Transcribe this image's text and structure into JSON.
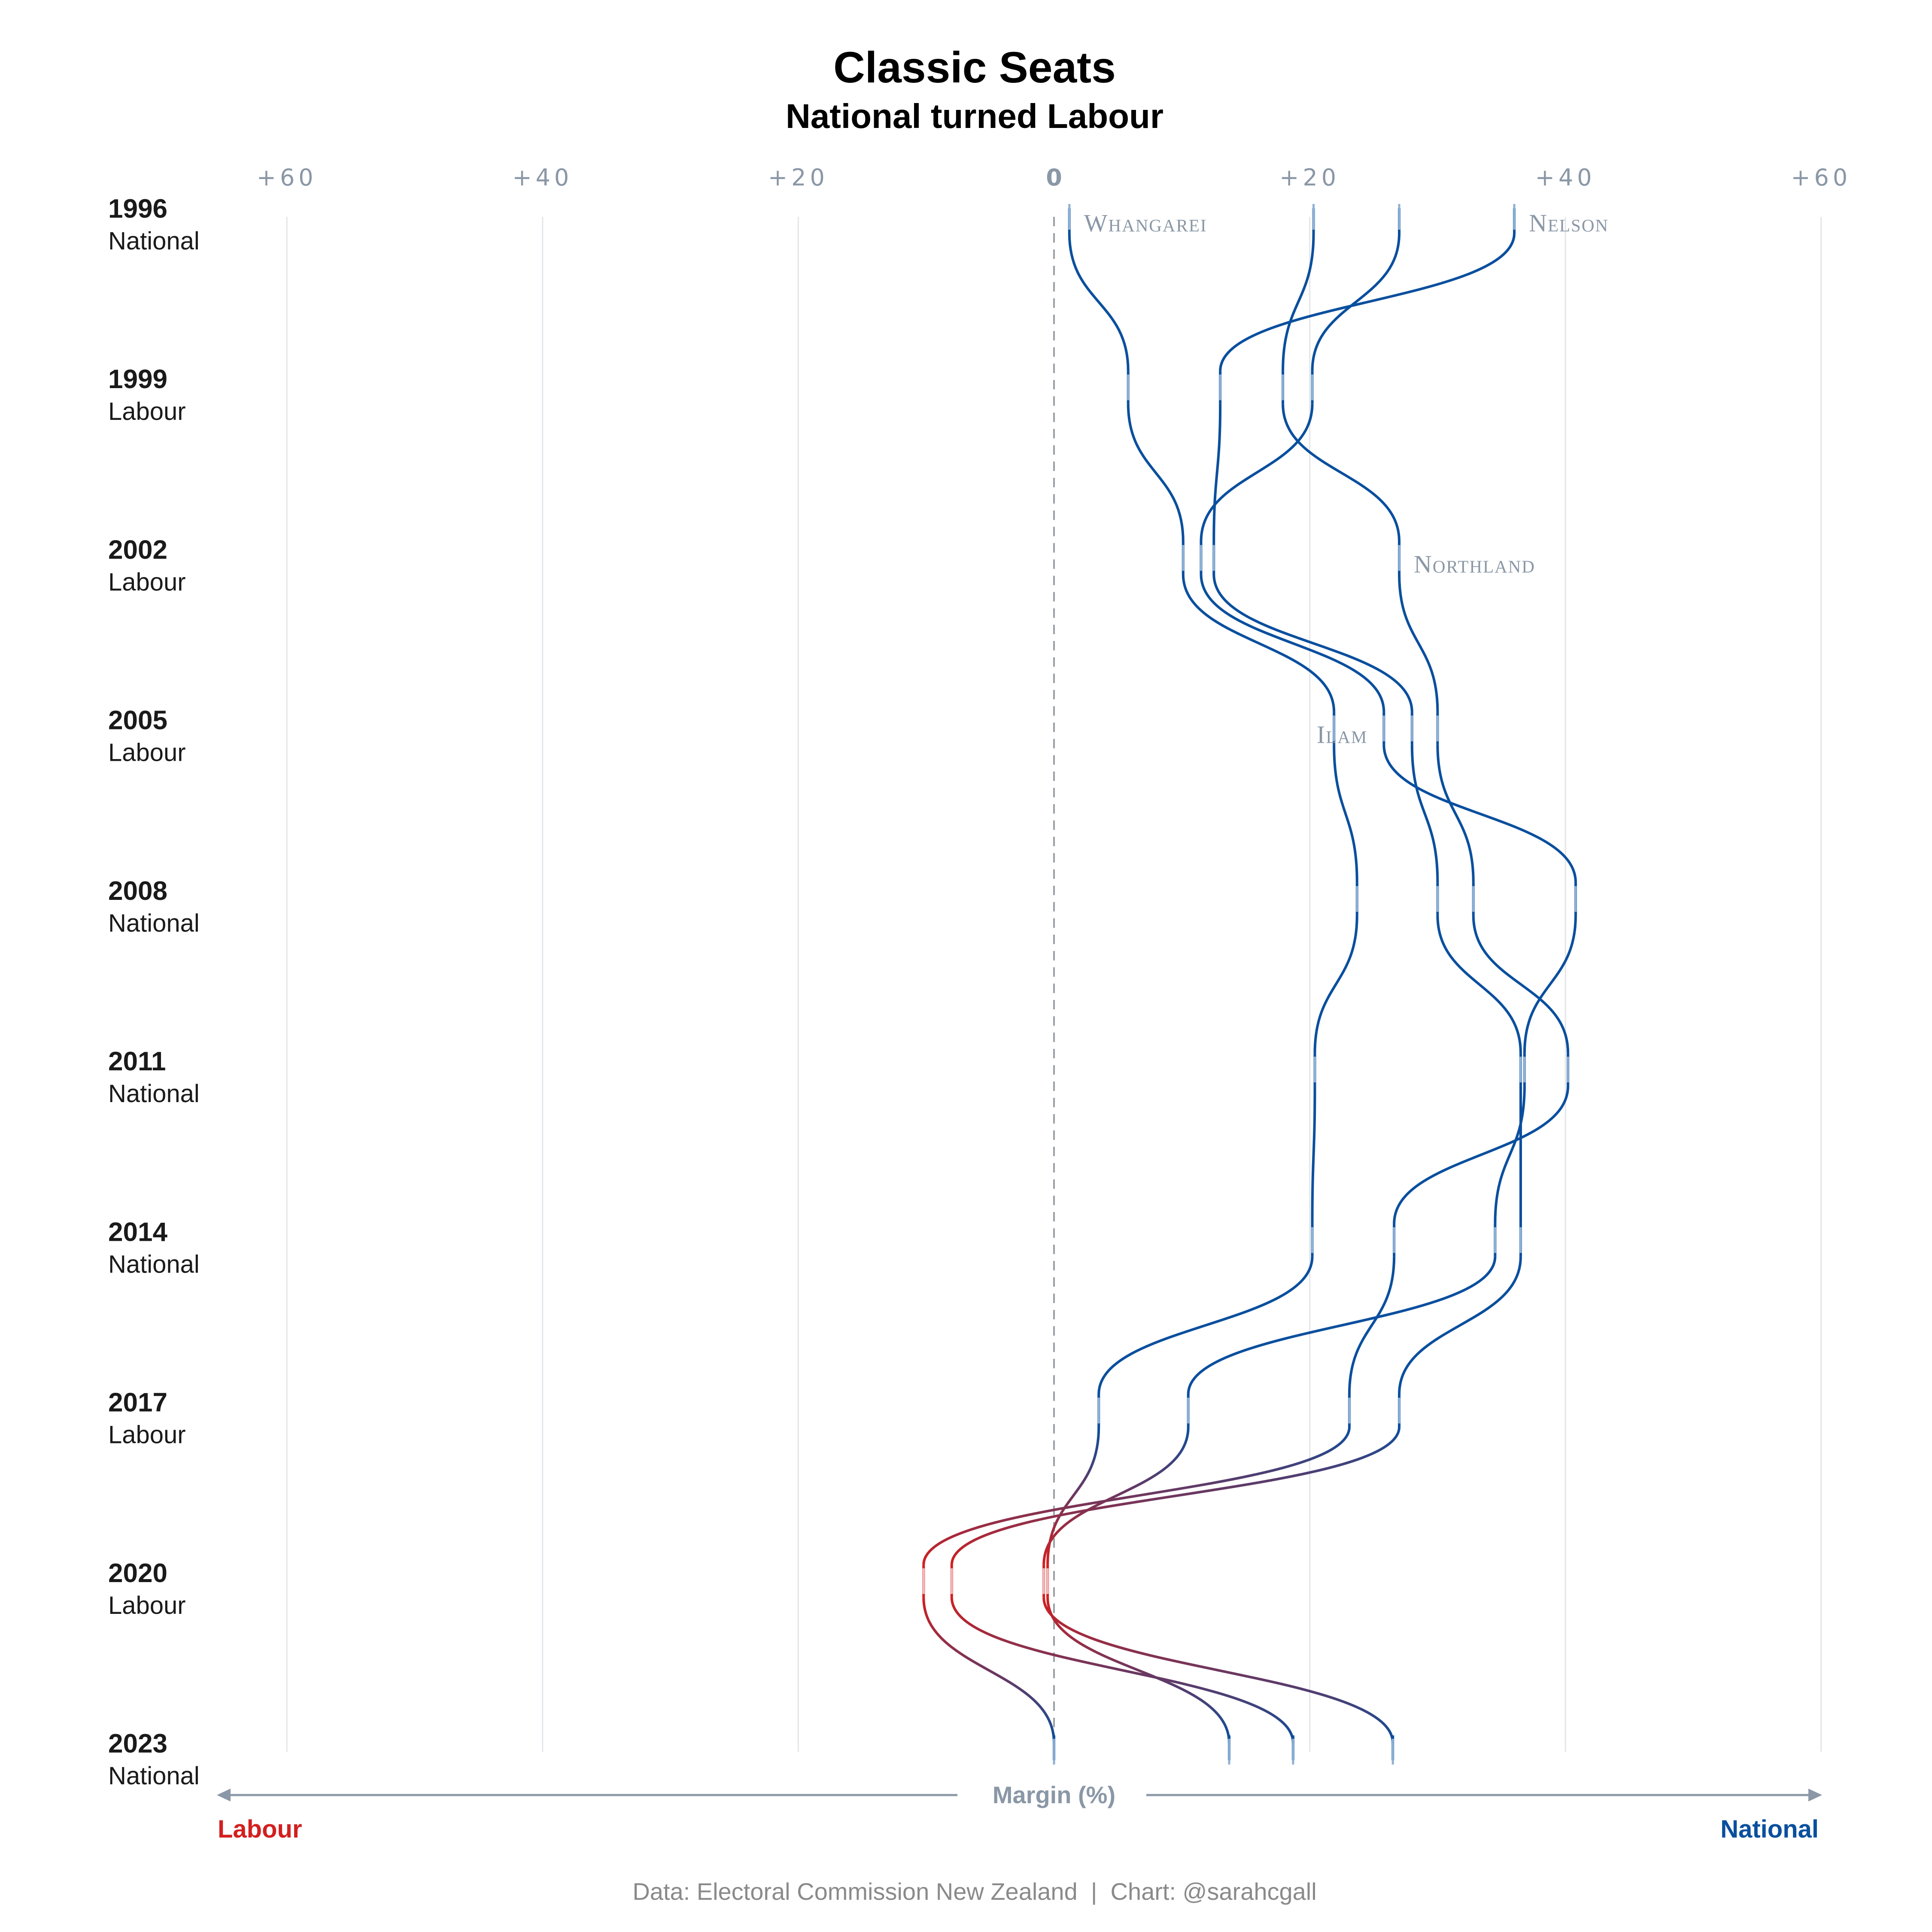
{
  "chart_data": {
    "type": "line",
    "title": "Classic Seats",
    "subtitle": "National turned Labour",
    "x_tick_labels": [
      "+60",
      "+40",
      "+20",
      "0",
      "+20",
      "+40",
      "+60"
    ],
    "x_tick_values": [
      -60,
      -40,
      -20,
      0,
      20,
      40,
      60
    ],
    "xlim": [
      -60,
      60
    ],
    "xlabel": "Margin (%)",
    "x_left_label": "Labour",
    "x_right_label": "National",
    "grid": true,
    "elections": [
      {
        "year": "1996",
        "winner": "National"
      },
      {
        "year": "1999",
        "winner": "Labour"
      },
      {
        "year": "2002",
        "winner": "Labour"
      },
      {
        "year": "2005",
        "winner": "Labour"
      },
      {
        "year": "2008",
        "winner": "National"
      },
      {
        "year": "2011",
        "winner": "National"
      },
      {
        "year": "2014",
        "winner": "National"
      },
      {
        "year": "2017",
        "winner": "Labour"
      },
      {
        "year": "2020",
        "winner": "Labour"
      },
      {
        "year": "2023",
        "winner": "National"
      }
    ],
    "series": [
      {
        "name": "Whangarei",
        "values": [
          1.2,
          5.8,
          10.1,
          21.9,
          23.7,
          20.4,
          20.2,
          3.5,
          -0.5,
          13.7
        ]
      },
      {
        "name": "Nelson",
        "values": [
          36.0,
          13.0,
          12.5,
          28.0,
          30.0,
          36.5,
          36.5,
          27.0,
          -8.0,
          18.7
        ]
      },
      {
        "name": "Northland",
        "values": [
          20.3,
          17.9,
          27.0,
          30.0,
          32.8,
          40.2,
          26.6,
          23.1,
          -10.2,
          0.0
        ]
      },
      {
        "name": "Ilam",
        "values": [
          27.0,
          20.2,
          11.5,
          25.8,
          40.8,
          36.8,
          34.5,
          10.5,
          -0.8,
          26.5
        ]
      }
    ],
    "colors": {
      "national": "#0a4f9e",
      "labour": "#d31f1f",
      "marker": "#8fb2d6",
      "grid": "#e3e5e8"
    }
  },
  "credit": "Data: Electoral Commission New Zealand  |  Chart: @sarahcgall"
}
